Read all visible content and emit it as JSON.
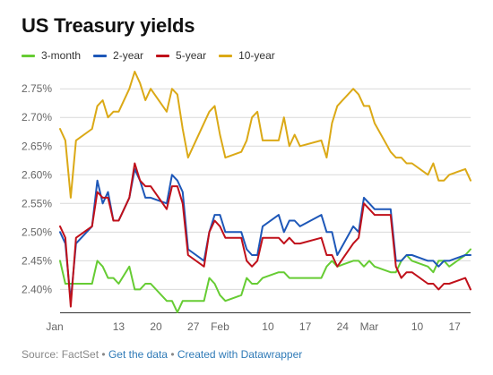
{
  "colors": {
    "3-month": "#66cc33",
    "2-year": "#1d57b8",
    "5-year": "#c0101a",
    "10-year": "#dba916",
    "grid": "#d9d9d9",
    "axis": "#333333",
    "tick_text": "#666666",
    "footer_text": "#888888",
    "footer_link": "#2f7ab7"
  },
  "header": {
    "title": "US Treasury yields"
  },
  "legend": {
    "items": [
      {
        "label": "3-month",
        "color": "#66cc33"
      },
      {
        "label": "2-year",
        "color": "#1d57b8"
      },
      {
        "label": "5-year",
        "color": "#c0101a"
      },
      {
        "label": "10-year",
        "color": "#dba916"
      }
    ]
  },
  "footer": {
    "source": "Source: FactSet",
    "sep1": "•",
    "get_data": "Get the data",
    "sep2": "•",
    "created_with": "Created with Datawrapper"
  },
  "chart_data": {
    "type": "line",
    "title": "US Treasury yields",
    "xlabel": "",
    "ylabel": "",
    "ylim": [
      2.36,
      2.78
    ],
    "x_tick_labels": [
      "Jan",
      "13",
      "20",
      "27",
      "Feb",
      "10",
      "17",
      "24",
      "Mar",
      "10",
      "17"
    ],
    "y_tick_labels": [
      "2.40%",
      "2.45%",
      "2.50%",
      "2.55%",
      "2.60%",
      "2.65%",
      "2.70%",
      "2.75%"
    ],
    "y_tick_values": [
      2.4,
      2.45,
      2.5,
      2.55,
      2.6,
      2.65,
      2.7,
      2.75
    ],
    "grid": true,
    "legend_position": "top",
    "x_start": "2018-01-02",
    "x_end": "2018-03-20",
    "series": [
      {
        "name": "3-month",
        "color": "#66cc33",
        "dates": [
          "2018-01-02",
          "2018-01-03",
          "2018-01-04",
          "2018-01-05",
          "2018-01-08",
          "2018-01-09",
          "2018-01-10",
          "2018-01-11",
          "2018-01-12",
          "2018-01-13",
          "2018-01-15",
          "2018-01-16",
          "2018-01-17",
          "2018-01-18",
          "2018-01-19",
          "2018-01-22",
          "2018-01-23",
          "2018-01-24",
          "2018-01-25",
          "2018-01-26",
          "2018-01-29",
          "2018-01-30",
          "2018-01-31",
          "2018-02-01",
          "2018-02-02",
          "2018-02-05",
          "2018-02-06",
          "2018-02-07",
          "2018-02-08",
          "2018-02-09",
          "2018-02-12",
          "2018-02-13",
          "2018-02-14",
          "2018-02-15",
          "2018-02-16",
          "2018-02-20",
          "2018-02-21",
          "2018-02-22",
          "2018-02-23",
          "2018-02-26",
          "2018-02-27",
          "2018-02-28",
          "2018-03-01",
          "2018-03-02",
          "2018-03-05",
          "2018-03-06",
          "2018-03-07",
          "2018-03-08",
          "2018-03-09",
          "2018-03-12",
          "2018-03-13",
          "2018-03-14",
          "2018-03-15",
          "2018-03-16",
          "2018-03-19",
          "2018-03-20"
        ],
        "values": [
          2.45,
          2.41,
          2.41,
          2.41,
          2.41,
          2.45,
          2.44,
          2.42,
          2.42,
          2.41,
          2.44,
          2.4,
          2.4,
          2.41,
          2.41,
          2.38,
          2.38,
          2.36,
          2.38,
          2.38,
          2.38,
          2.42,
          2.41,
          2.39,
          2.38,
          2.39,
          2.42,
          2.41,
          2.41,
          2.42,
          2.43,
          2.43,
          2.42,
          2.42,
          2.42,
          2.42,
          2.44,
          2.45,
          2.44,
          2.45,
          2.45,
          2.44,
          2.45,
          2.44,
          2.43,
          2.43,
          2.45,
          2.46,
          2.45,
          2.44,
          2.43,
          2.45,
          2.45,
          2.44,
          2.46,
          2.47
        ]
      },
      {
        "name": "2-year",
        "color": "#1d57b8",
        "dates": [
          "2018-01-02",
          "2018-01-03",
          "2018-01-04",
          "2018-01-05",
          "2018-01-08",
          "2018-01-09",
          "2018-01-10",
          "2018-01-11",
          "2018-01-12",
          "2018-01-13",
          "2018-01-15",
          "2018-01-16",
          "2018-01-17",
          "2018-01-18",
          "2018-01-19",
          "2018-01-22",
          "2018-01-23",
          "2018-01-24",
          "2018-01-25",
          "2018-01-26",
          "2018-01-29",
          "2018-01-30",
          "2018-01-31",
          "2018-02-01",
          "2018-02-02",
          "2018-02-05",
          "2018-02-06",
          "2018-02-07",
          "2018-02-08",
          "2018-02-09",
          "2018-02-12",
          "2018-02-13",
          "2018-02-14",
          "2018-02-15",
          "2018-02-16",
          "2018-02-20",
          "2018-02-21",
          "2018-02-22",
          "2018-02-23",
          "2018-02-26",
          "2018-02-27",
          "2018-02-28",
          "2018-03-01",
          "2018-03-02",
          "2018-03-05",
          "2018-03-06",
          "2018-03-07",
          "2018-03-08",
          "2018-03-09",
          "2018-03-12",
          "2018-03-13",
          "2018-03-14",
          "2018-03-15",
          "2018-03-16",
          "2018-03-19",
          "2018-03-20"
        ],
        "values": [
          2.5,
          2.48,
          2.38,
          2.48,
          2.51,
          2.59,
          2.55,
          2.57,
          2.52,
          2.52,
          2.56,
          2.61,
          2.59,
          2.56,
          2.56,
          2.55,
          2.6,
          2.59,
          2.57,
          2.47,
          2.45,
          2.5,
          2.53,
          2.53,
          2.5,
          2.5,
          2.47,
          2.46,
          2.46,
          2.51,
          2.53,
          2.5,
          2.52,
          2.52,
          2.51,
          2.53,
          2.5,
          2.5,
          2.46,
          2.51,
          2.5,
          2.56,
          2.55,
          2.54,
          2.54,
          2.45,
          2.45,
          2.46,
          2.46,
          2.45,
          2.45,
          2.44,
          2.45,
          2.45,
          2.46,
          2.46
        ]
      },
      {
        "name": "5-year",
        "color": "#c0101a",
        "dates": [
          "2018-01-02",
          "2018-01-03",
          "2018-01-04",
          "2018-01-05",
          "2018-01-08",
          "2018-01-09",
          "2018-01-10",
          "2018-01-11",
          "2018-01-12",
          "2018-01-13",
          "2018-01-15",
          "2018-01-16",
          "2018-01-17",
          "2018-01-18",
          "2018-01-19",
          "2018-01-22",
          "2018-01-23",
          "2018-01-24",
          "2018-01-25",
          "2018-01-26",
          "2018-01-29",
          "2018-01-30",
          "2018-01-31",
          "2018-02-01",
          "2018-02-02",
          "2018-02-05",
          "2018-02-06",
          "2018-02-07",
          "2018-02-08",
          "2018-02-09",
          "2018-02-12",
          "2018-02-13",
          "2018-02-14",
          "2018-02-15",
          "2018-02-16",
          "2018-02-20",
          "2018-02-21",
          "2018-02-22",
          "2018-02-23",
          "2018-02-26",
          "2018-02-27",
          "2018-02-28",
          "2018-03-01",
          "2018-03-02",
          "2018-03-05",
          "2018-03-06",
          "2018-03-07",
          "2018-03-08",
          "2018-03-09",
          "2018-03-12",
          "2018-03-13",
          "2018-03-14",
          "2018-03-15",
          "2018-03-16",
          "2018-03-19",
          "2018-03-20"
        ],
        "values": [
          2.51,
          2.49,
          2.37,
          2.49,
          2.51,
          2.57,
          2.56,
          2.56,
          2.52,
          2.52,
          2.56,
          2.62,
          2.59,
          2.58,
          2.58,
          2.54,
          2.58,
          2.58,
          2.55,
          2.46,
          2.44,
          2.5,
          2.52,
          2.51,
          2.49,
          2.49,
          2.45,
          2.44,
          2.45,
          2.49,
          2.49,
          2.48,
          2.49,
          2.48,
          2.48,
          2.49,
          2.46,
          2.46,
          2.44,
          2.48,
          2.49,
          2.55,
          2.54,
          2.53,
          2.53,
          2.44,
          2.42,
          2.43,
          2.43,
          2.41,
          2.41,
          2.4,
          2.41,
          2.41,
          2.42,
          2.4
        ]
      },
      {
        "name": "10-year",
        "color": "#dba916",
        "dates": [
          "2018-01-02",
          "2018-01-03",
          "2018-01-04",
          "2018-01-05",
          "2018-01-08",
          "2018-01-09",
          "2018-01-10",
          "2018-01-11",
          "2018-01-12",
          "2018-01-13",
          "2018-01-15",
          "2018-01-16",
          "2018-01-17",
          "2018-01-18",
          "2018-01-19",
          "2018-01-22",
          "2018-01-23",
          "2018-01-24",
          "2018-01-25",
          "2018-01-26",
          "2018-01-29",
          "2018-01-30",
          "2018-01-31",
          "2018-02-01",
          "2018-02-02",
          "2018-02-05",
          "2018-02-06",
          "2018-02-07",
          "2018-02-08",
          "2018-02-09",
          "2018-02-12",
          "2018-02-13",
          "2018-02-14",
          "2018-02-15",
          "2018-02-16",
          "2018-02-20",
          "2018-02-21",
          "2018-02-22",
          "2018-02-23",
          "2018-02-26",
          "2018-02-27",
          "2018-02-28",
          "2018-03-01",
          "2018-03-02",
          "2018-03-05",
          "2018-03-06",
          "2018-03-07",
          "2018-03-08",
          "2018-03-09",
          "2018-03-12",
          "2018-03-13",
          "2018-03-14",
          "2018-03-15",
          "2018-03-16",
          "2018-03-19",
          "2018-03-20"
        ],
        "values": [
          2.68,
          2.66,
          2.56,
          2.66,
          2.68,
          2.72,
          2.73,
          2.7,
          2.71,
          2.71,
          2.75,
          2.78,
          2.76,
          2.73,
          2.75,
          2.71,
          2.75,
          2.74,
          2.68,
          2.63,
          2.69,
          2.71,
          2.72,
          2.67,
          2.63,
          2.64,
          2.66,
          2.7,
          2.71,
          2.66,
          2.66,
          2.7,
          2.65,
          2.67,
          2.65,
          2.66,
          2.63,
          2.69,
          2.72,
          2.75,
          2.74,
          2.72,
          2.72,
          2.69,
          2.64,
          2.63,
          2.63,
          2.62,
          2.62,
          2.6,
          2.62,
          2.59,
          2.59,
          2.6,
          2.61,
          2.59
        ]
      }
    ]
  }
}
